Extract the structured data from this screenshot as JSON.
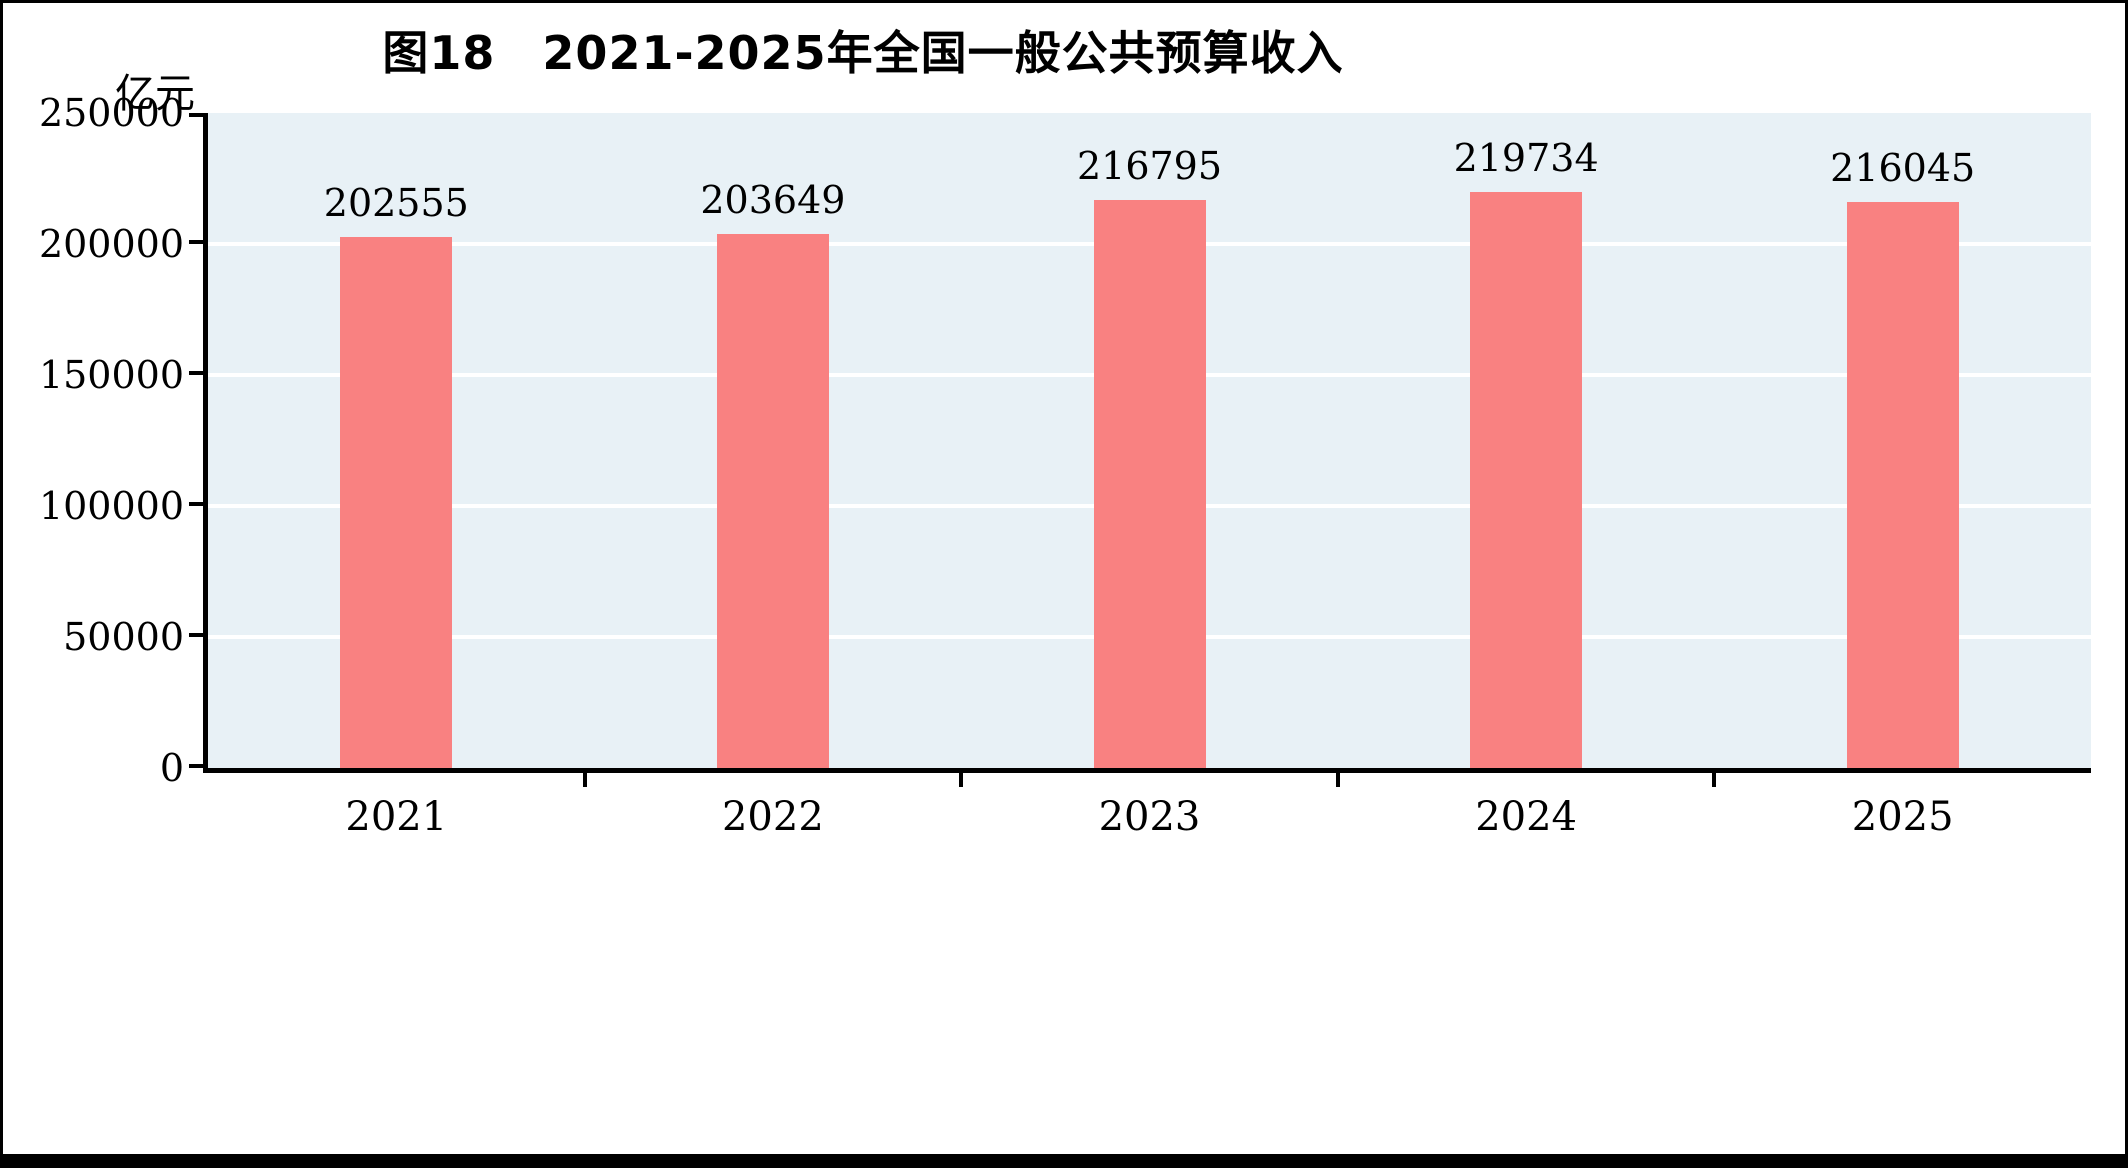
{
  "page": {
    "title": "图18　2021-2025年全国一般公共预算收入",
    "unit_label": "亿元"
  },
  "chart_data": {
    "type": "bar",
    "title": "图18　2021-2025年全国一般公共预算收入",
    "unit": "亿元",
    "categories": [
      "2021",
      "2022",
      "2023",
      "2024",
      "2025"
    ],
    "values": [
      202555,
      203649,
      216795,
      219734,
      216045
    ],
    "ylim": [
      0,
      250000
    ],
    "yticks": [
      0,
      50000,
      100000,
      150000,
      200000,
      250000
    ],
    "grid": true,
    "legend": false,
    "bar_color": "#f98181",
    "plot_bg": "#e8f1f6",
    "grid_color": "#ffffff",
    "axis_color": "#000000"
  }
}
